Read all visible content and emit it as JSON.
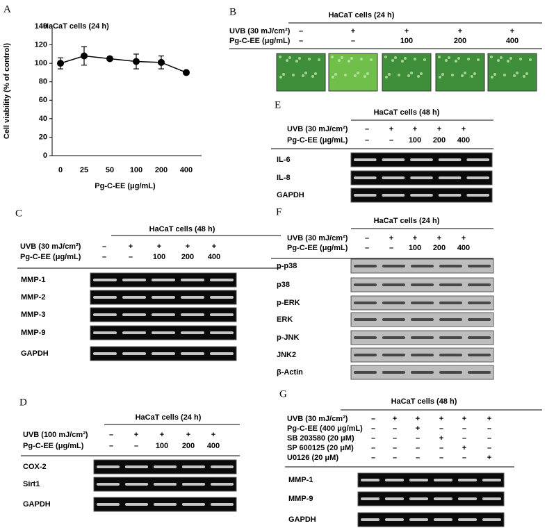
{
  "chart_data": {
    "type": "line",
    "panel_label": "A",
    "title": "HaCaT cells (24 h)",
    "x_label": "Pg-C-EE (μg/mL)",
    "y_label": "Cell viability (% of control)",
    "categories": [
      "0",
      "25",
      "50",
      "100",
      "200",
      "400"
    ],
    "values": [
      100,
      108,
      105,
      102,
      101,
      90
    ],
    "errors": [
      6,
      10,
      2,
      8,
      7,
      0
    ],
    "color": "#000000",
    "ylim": [
      0,
      140
    ],
    "yticks": [
      0,
      20,
      40,
      60,
      80,
      100,
      120,
      140
    ]
  },
  "panels": [
    {
      "letter": "B",
      "title": "HaCaT cells (24 h)",
      "rows": [
        {
          "label": "UVB (30 mJ/cm²)",
          "cells": [
            "–",
            "+",
            "+",
            "+",
            "+"
          ]
        },
        {
          "label": "Pg-C-EE (μg/mL)",
          "cells": [
            "–",
            "–",
            "100",
            "200",
            "400"
          ]
        }
      ],
      "blots": []
    },
    {
      "letter": "E",
      "title": "HaCaT cells (48 h)",
      "rows": [
        {
          "label": "UVB (30 mJ/cm²)",
          "cells": [
            "–",
            "+",
            "+",
            "+",
            "+"
          ]
        },
        {
          "label": "Pg-C-EE (μg/mL)",
          "cells": [
            "–",
            "–",
            "100",
            "200",
            "400"
          ]
        }
      ],
      "blots": [
        "IL-6",
        "IL-8",
        "GAPDH"
      ]
    },
    {
      "letter": "C",
      "title": "HaCaT cells (48 h)",
      "rows": [
        {
          "label": "UVB (30 mJ/cm²)",
          "cells": [
            "–",
            "+",
            "+",
            "+",
            "+"
          ]
        },
        {
          "label": "Pg-C-EE (μg/mL)",
          "cells": [
            "–",
            "–",
            "100",
            "200",
            "400"
          ]
        }
      ],
      "blots": [
        "MMP-1",
        "MMP-2",
        "MMP-3",
        "MMP-9",
        "GAPDH"
      ]
    },
    {
      "letter": "F",
      "title": "HaCaT cells (24 h)",
      "rows": [
        {
          "label": "UVB (30 mJ/cm²)",
          "cells": [
            "–",
            "+",
            "+",
            "+",
            "+"
          ]
        },
        {
          "label": "Pg-C-EE (μg/mL)",
          "cells": [
            "–",
            "–",
            "100",
            "200",
            "400"
          ]
        }
      ],
      "blots": [
        "p-p38",
        "p38",
        "p-ERK",
        "ERK",
        "p-JNK",
        "JNK2",
        "β-Actin"
      ]
    },
    {
      "letter": "D",
      "title": "HaCaT cells (24 h)",
      "rows": [
        {
          "label": "UVB (100 mJ/cm²)",
          "cells": [
            "–",
            "+",
            "+",
            "+",
            "+"
          ]
        },
        {
          "label": "Pg-C-EE (μg/mL)",
          "cells": [
            "–",
            "–",
            "100",
            "200",
            "400"
          ]
        }
      ],
      "blots": [
        "COX-2",
        "Sirt1",
        "GAPDH"
      ]
    },
    {
      "letter": "G",
      "title": "HaCaT cells (48 h)",
      "rows": [
        {
          "label": "UVB (30 mJ/cm²)",
          "cells": [
            "–",
            "+",
            "+",
            "+",
            "+",
            "+"
          ]
        },
        {
          "label": "Pg-C-EE (400 μg/mL)",
          "cells": [
            "–",
            "–",
            "+",
            "–",
            "–",
            "–"
          ]
        },
        {
          "label": "SB 203580 (20 μM)",
          "cells": [
            "–",
            "–",
            "–",
            "+",
            "–",
            "–"
          ]
        },
        {
          "label": "SP 600125 (20 μM)",
          "cells": [
            "–",
            "–",
            "–",
            "–",
            "+",
            "–"
          ]
        },
        {
          "label": "U0126 (20 μM)",
          "cells": [
            "–",
            "–",
            "–",
            "–",
            "–",
            "+"
          ]
        }
      ],
      "blots": [
        "MMP-1",
        "MMP-9",
        "GAPDH"
      ]
    }
  ]
}
